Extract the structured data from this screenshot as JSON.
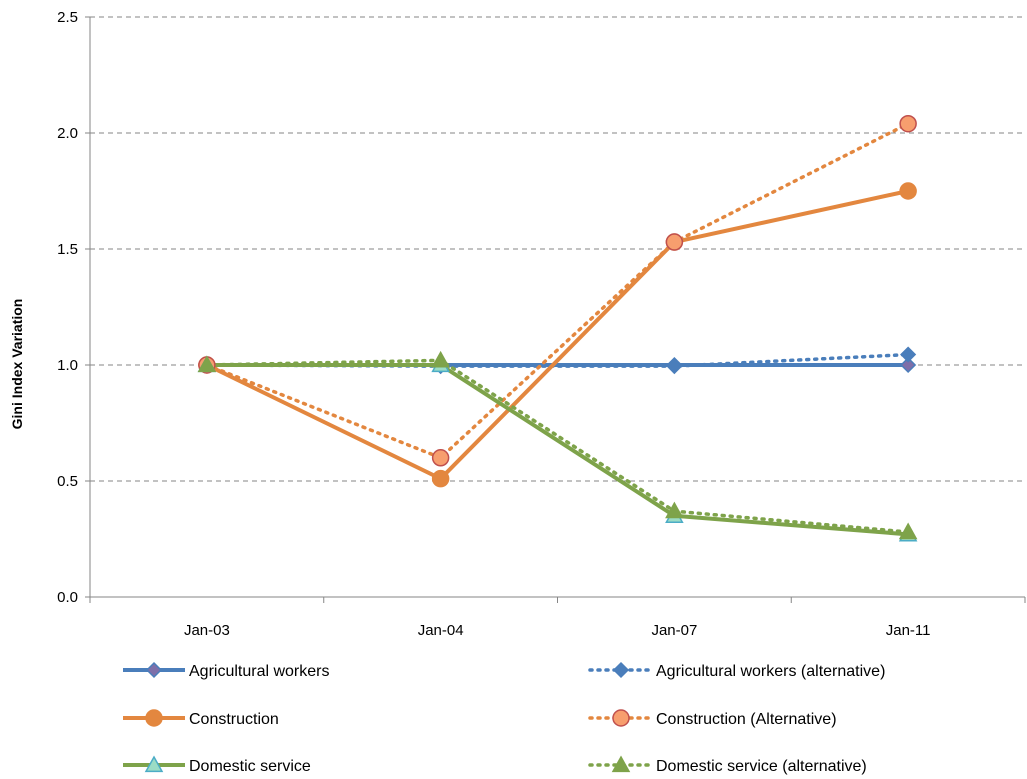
{
  "chart_data": {
    "type": "line",
    "title": "",
    "xlabel": "",
    "ylabel": "Gini Index Variation",
    "categories": [
      "Jan-03",
      "Jan-04",
      "Jan-07",
      "Jan-11"
    ],
    "ylim": [
      0,
      2.5
    ],
    "yticks": [
      "0.0",
      "0.5",
      "1.0",
      "1.5",
      "2.0",
      "2.5"
    ],
    "grid": "horizontal dashed",
    "legend_position": "bottom",
    "series": [
      {
        "name": "Agricultural workers",
        "values": [
          1.0,
          1.0,
          1.0,
          1.0
        ],
        "color": "#4a7ebb",
        "style": "solid",
        "marker": "diamond",
        "marker_fill": "#7e6fa9",
        "marker_stroke": "#4a7ebb"
      },
      {
        "name": "Agricultural workers (alternative)",
        "values": [
          1.0,
          0.995,
          0.995,
          1.045
        ],
        "color": "#4a7ebb",
        "style": "dotted",
        "marker": "diamond",
        "marker_fill": "#4a7ebb",
        "marker_stroke": "#4a7ebb"
      },
      {
        "name": "Construction",
        "values": [
          1.0,
          0.51,
          1.53,
          1.75
        ],
        "color": "#e3873f",
        "style": "solid",
        "marker": "circle",
        "marker_fill": "#e3873f",
        "marker_stroke": "#e3873f"
      },
      {
        "name": "Construction (Alternative)",
        "values": [
          1.0,
          0.6,
          1.53,
          2.04
        ],
        "color": "#e3873f",
        "style": "dotted",
        "marker": "circle",
        "marker_fill": "#f79e6e",
        "marker_stroke": "#c0504d"
      },
      {
        "name": "Domestic service",
        "values": [
          1.0,
          1.0,
          0.35,
          0.27
        ],
        "color": "#7ea34a",
        "style": "solid",
        "marker": "triangle",
        "marker_fill": "#9bdcc5",
        "marker_stroke": "#4bacc6"
      },
      {
        "name": "Domestic service (alternative)",
        "values": [
          1.0,
          1.02,
          0.37,
          0.28
        ],
        "color": "#7ea34a",
        "style": "dotted",
        "marker": "triangle",
        "marker_fill": "#7ea34a",
        "marker_stroke": "#7ea34a"
      }
    ]
  }
}
